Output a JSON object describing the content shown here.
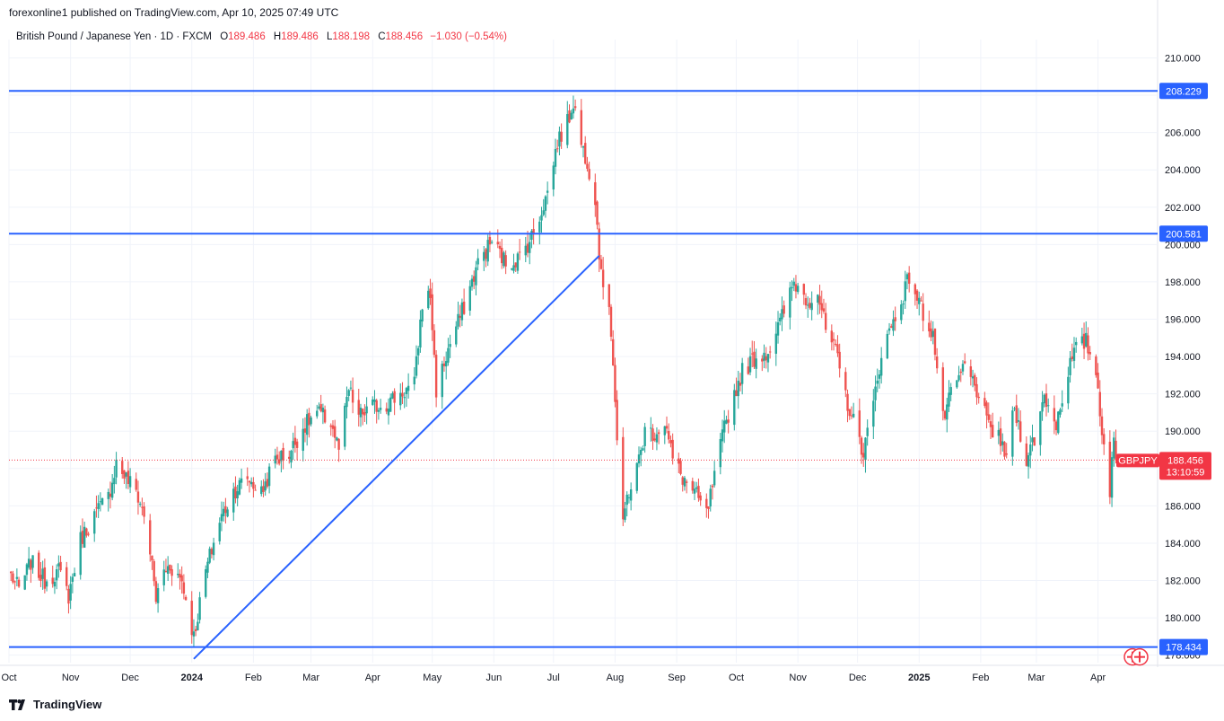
{
  "publisher": "forexonline1 published on TradingView.com, Apr 10, 2025 07:49 UTC",
  "legend": {
    "symbol": "British Pound / Japanese Yen · 1D · FXCM",
    "open_label": "O",
    "open": "189.486",
    "high_label": "H",
    "high": "189.486",
    "low_label": "L",
    "low": "188.198",
    "close_label": "C",
    "close": "188.456",
    "change": "−1.030 (−0.54%)"
  },
  "brand": "TradingView",
  "colors": {
    "up": "#26a69a",
    "down": "#ef5350",
    "line": "#2962ff",
    "grid": "#f0f3fa",
    "price": "#f23645"
  },
  "chart_data": {
    "type": "candlestick",
    "ylim": [
      177.6,
      210.6
    ],
    "y_ticks": [
      "178.000",
      "180.000",
      "182.000",
      "184.000",
      "186.000",
      "188.000",
      "190.000",
      "192.000",
      "194.000",
      "196.000",
      "198.000",
      "200.000",
      "202.000",
      "204.000",
      "206.000",
      "208.000",
      "210.000"
    ],
    "x_ticks": [
      {
        "label": "Oct",
        "date": "2023-10-01"
      },
      {
        "label": "Nov",
        "date": "2023-11-01"
      },
      {
        "label": "Dec",
        "date": "2023-12-01"
      },
      {
        "label": "2024",
        "date": "2024-01-01",
        "bold": true
      },
      {
        "label": "Feb",
        "date": "2024-02-01"
      },
      {
        "label": "Mar",
        "date": "2024-03-01"
      },
      {
        "label": "Apr",
        "date": "2024-04-01"
      },
      {
        "label": "May",
        "date": "2024-05-01"
      },
      {
        "label": "Jun",
        "date": "2024-06-01"
      },
      {
        "label": "Jul",
        "date": "2024-07-01"
      },
      {
        "label": "Aug",
        "date": "2024-08-01"
      },
      {
        "label": "Sep",
        "date": "2024-09-01"
      },
      {
        "label": "Oct",
        "date": "2024-10-01"
      },
      {
        "label": "Nov",
        "date": "2024-11-01"
      },
      {
        "label": "Dec",
        "date": "2024-12-01"
      },
      {
        "label": "2025",
        "date": "2025-01-01",
        "bold": true
      },
      {
        "label": "Feb",
        "date": "2025-02-01"
      },
      {
        "label": "Mar",
        "date": "2025-03-01"
      },
      {
        "label": "Apr",
        "date": "2025-04-01"
      }
    ],
    "x_range": [
      "2023-10-01",
      "2025-05-01"
    ],
    "close_path": [
      [
        "2023-10-02",
        182.3
      ],
      [
        "2023-10-06",
        181.5
      ],
      [
        "2023-10-12",
        183.0
      ],
      [
        "2023-10-19",
        182.0
      ],
      [
        "2023-10-26",
        182.5
      ],
      [
        "2023-10-31",
        181.2
      ],
      [
        "2023-11-06",
        184.2
      ],
      [
        "2023-11-13",
        185.5
      ],
      [
        "2023-11-20",
        186.5
      ],
      [
        "2023-11-24",
        188.3
      ],
      [
        "2023-11-29",
        187.5
      ],
      [
        "2023-12-04",
        186.8
      ],
      [
        "2023-12-08",
        185.5
      ],
      [
        "2023-12-11",
        183.6
      ],
      [
        "2023-12-14",
        181.0
      ],
      [
        "2023-12-18",
        182.5
      ],
      [
        "2023-12-21",
        182.8
      ],
      [
        "2023-12-27",
        182.0
      ],
      [
        "2024-01-02",
        179.0
      ],
      [
        "2024-01-08",
        182.5
      ],
      [
        "2024-01-15",
        185.2
      ],
      [
        "2024-01-22",
        186.8
      ],
      [
        "2024-01-29",
        187.5
      ],
      [
        "2024-02-05",
        186.7
      ],
      [
        "2024-02-12",
        188.5
      ],
      [
        "2024-02-19",
        188.8
      ],
      [
        "2024-02-26",
        190.2
      ],
      [
        "2024-03-04",
        191.0
      ],
      [
        "2024-03-11",
        190.5
      ],
      [
        "2024-03-15",
        189.0
      ],
      [
        "2024-03-20",
        192.2
      ],
      [
        "2024-03-25",
        190.8
      ],
      [
        "2024-04-01",
        191.3
      ],
      [
        "2024-04-08",
        191.5
      ],
      [
        "2024-04-15",
        192.0
      ],
      [
        "2024-04-22",
        192.5
      ],
      [
        "2024-04-26",
        196.9
      ],
      [
        "2024-04-30",
        197.3
      ],
      [
        "2024-05-03",
        192.2
      ],
      [
        "2024-05-10",
        194.7
      ],
      [
        "2024-05-17",
        196.7
      ],
      [
        "2024-05-24",
        199.0
      ],
      [
        "2024-05-31",
        200.2
      ],
      [
        "2024-06-07",
        199.0
      ],
      [
        "2024-06-14",
        199.3
      ],
      [
        "2024-06-21",
        200.6
      ],
      [
        "2024-06-28",
        202.8
      ],
      [
        "2024-07-03",
        205.5
      ],
      [
        "2024-07-08",
        206.5
      ],
      [
        "2024-07-11",
        207.7
      ],
      [
        "2024-07-15",
        205.4
      ],
      [
        "2024-07-18",
        204.5
      ],
      [
        "2024-07-22",
        202.5
      ],
      [
        "2024-07-25",
        198.2
      ],
      [
        "2024-07-29",
        197.0
      ],
      [
        "2024-07-31",
        193.7
      ],
      [
        "2024-08-02",
        189.5
      ],
      [
        "2024-08-05",
        184.8
      ],
      [
        "2024-08-07",
        186.5
      ],
      [
        "2024-08-12",
        188.0
      ],
      [
        "2024-08-16",
        190.0
      ],
      [
        "2024-08-21",
        189.9
      ],
      [
        "2024-08-26",
        190.5
      ],
      [
        "2024-08-30",
        188.5
      ],
      [
        "2024-09-04",
        187.5
      ],
      [
        "2024-09-11",
        186.5
      ],
      [
        "2024-09-16",
        185.5
      ],
      [
        "2024-09-20",
        187.5
      ],
      [
        "2024-09-25",
        190.2
      ],
      [
        "2024-09-30",
        192.0
      ],
      [
        "2024-10-04",
        193.2
      ],
      [
        "2024-10-10",
        193.9
      ],
      [
        "2024-10-17",
        194.3
      ],
      [
        "2024-10-23",
        195.8
      ],
      [
        "2024-10-30",
        198.0
      ],
      [
        "2024-11-06",
        197.0
      ],
      [
        "2024-11-11",
        197.5
      ],
      [
        "2024-11-15",
        195.4
      ],
      [
        "2024-11-20",
        194.2
      ],
      [
        "2024-11-26",
        191.5
      ],
      [
        "2024-11-29",
        190.5
      ],
      [
        "2024-12-04",
        188.9
      ],
      [
        "2024-12-09",
        191.4
      ],
      [
        "2024-12-13",
        194.2
      ],
      [
        "2024-12-18",
        195.6
      ],
      [
        "2024-12-23",
        197.0
      ],
      [
        "2024-12-27",
        198.3
      ],
      [
        "2025-01-03",
        196.3
      ],
      [
        "2025-01-08",
        195.2
      ],
      [
        "2025-01-13",
        190.6
      ],
      [
        "2025-01-17",
        191.9
      ],
      [
        "2025-01-24",
        193.5
      ],
      [
        "2025-01-31",
        192.0
      ],
      [
        "2025-02-05",
        190.1
      ],
      [
        "2025-02-10",
        189.9
      ],
      [
        "2025-02-13",
        188.5
      ],
      [
        "2025-02-18",
        191.2
      ],
      [
        "2025-02-24",
        188.6
      ],
      [
        "2025-02-28",
        189.6
      ],
      [
        "2025-03-05",
        191.9
      ],
      [
        "2025-03-11",
        190.4
      ],
      [
        "2025-03-17",
        193.3
      ],
      [
        "2025-03-21",
        194.4
      ],
      [
        "2025-03-26",
        194.8
      ],
      [
        "2025-03-31",
        193.2
      ],
      [
        "2025-04-03",
        190.2
      ],
      [
        "2025-04-07",
        186.8
      ],
      [
        "2025-04-09",
        189.5
      ],
      [
        "2025-04-10",
        188.456
      ]
    ],
    "horizontal_lines": [
      {
        "label": "208.229",
        "value": 208.229
      },
      {
        "label": "200.581",
        "value": 200.581
      },
      {
        "label": "178.434",
        "value": 178.434
      }
    ],
    "trend_line": {
      "from": [
        "2024-01-02",
        177.8
      ],
      "to": [
        "2024-07-24",
        199.4
      ]
    },
    "last_price": {
      "value": 188.456,
      "symbol": "GBPJPY",
      "price": "188.456",
      "countdown": "13:10:59"
    }
  }
}
